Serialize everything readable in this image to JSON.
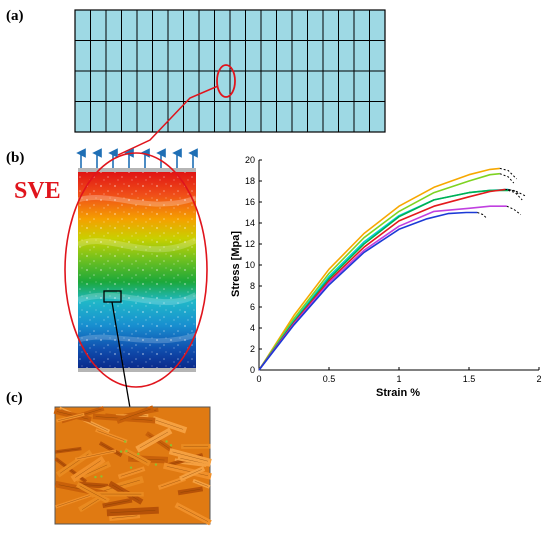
{
  "panels": {
    "a": "(a)",
    "b": "(b)",
    "c": "(c)"
  },
  "sve_label": "SVE",
  "colors": {
    "mesh_fill": "#9ed9e4",
    "highlight": "#e0141c",
    "arrow": "#1f6fb5",
    "fiber": "#e07a12"
  },
  "chart_data": {
    "type": "line",
    "xlabel": "Strain %",
    "ylabel": "Stress [Mpa]",
    "xlim": [
      0,
      2
    ],
    "ylim": [
      0,
      20
    ],
    "x_ticks": [
      "0",
      "0.5",
      "1",
      "1.5",
      "2"
    ],
    "y_ticks": [
      "0",
      "2",
      "4",
      "6",
      "8",
      "10",
      "12",
      "14",
      "16",
      "18",
      "20"
    ],
    "grid": false,
    "series": [
      {
        "color": "#f7a800",
        "x": [
          0,
          0.25,
          0.5,
          0.75,
          1.0,
          1.25,
          1.5,
          1.65,
          1.72
        ],
        "y": [
          0,
          5.2,
          9.6,
          13.0,
          15.6,
          17.4,
          18.6,
          19.1,
          19.2
        ],
        "tail": [
          [
            1.72,
            19.2
          ],
          [
            1.78,
            19.0
          ],
          [
            1.84,
            18.2
          ]
        ]
      },
      {
        "color": "#7ed321",
        "x": [
          0,
          0.25,
          0.5,
          0.75,
          1.0,
          1.25,
          1.5,
          1.65,
          1.72
        ],
        "y": [
          0,
          4.9,
          9.2,
          12.6,
          15.1,
          16.9,
          18.0,
          18.6,
          18.7
        ],
        "tail": [
          [
            1.72,
            18.7
          ],
          [
            1.78,
            18.4
          ],
          [
            1.82,
            17.8
          ]
        ]
      },
      {
        "color": "#00d0d8",
        "x": [
          0,
          0.25,
          0.5,
          0.75,
          1.0,
          1.25,
          1.5,
          1.65,
          1.78
        ],
        "y": [
          0,
          4.7,
          8.9,
          12.2,
          14.7,
          16.2,
          16.9,
          17.1,
          17.2
        ],
        "tail": [
          [
            1.78,
            17.2
          ],
          [
            1.84,
            17.0
          ],
          [
            1.9,
            16.6
          ]
        ]
      },
      {
        "color": "#00b050",
        "x": [
          0,
          0.25,
          0.5,
          0.75,
          1.0,
          1.25,
          1.5,
          1.65,
          1.78
        ],
        "y": [
          0,
          4.6,
          8.7,
          12.0,
          14.6,
          16.2,
          16.9,
          17.1,
          17.1
        ],
        "tail": [
          [
            1.78,
            17.1
          ],
          [
            1.83,
            16.9
          ],
          [
            1.88,
            16.2
          ]
        ]
      },
      {
        "color": "#e31a1c",
        "x": [
          0,
          0.25,
          0.5,
          0.75,
          1.0,
          1.25,
          1.5,
          1.65,
          1.76
        ],
        "y": [
          0,
          4.5,
          8.5,
          11.7,
          14.2,
          15.6,
          16.5,
          17.0,
          17.2
        ],
        "tail": [
          [
            1.76,
            17.2
          ],
          [
            1.82,
            17.1
          ],
          [
            1.86,
            16.7
          ]
        ]
      },
      {
        "color": "#c040e0",
        "x": [
          0,
          0.25,
          0.5,
          0.75,
          1.0,
          1.25,
          1.5,
          1.65,
          1.77
        ],
        "y": [
          0,
          4.4,
          8.3,
          11.4,
          13.7,
          15.1,
          15.4,
          15.6,
          15.6
        ],
        "tail": [
          [
            1.77,
            15.6
          ],
          [
            1.82,
            15.3
          ],
          [
            1.87,
            14.8
          ]
        ]
      },
      {
        "color": "#1c3ad6",
        "x": [
          0,
          0.25,
          0.5,
          0.75,
          1.0,
          1.2,
          1.35,
          1.48,
          1.56
        ],
        "y": [
          0,
          4.3,
          8.1,
          11.2,
          13.4,
          14.4,
          14.9,
          15.0,
          15.0
        ],
        "tail": [
          [
            1.56,
            15.0
          ],
          [
            1.6,
            14.8
          ],
          [
            1.63,
            14.4
          ]
        ]
      }
    ]
  }
}
